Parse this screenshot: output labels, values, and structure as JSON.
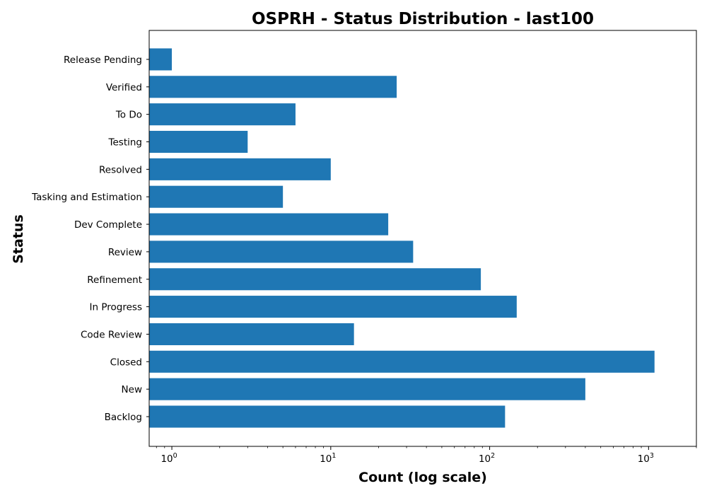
{
  "chart_data": {
    "type": "bar",
    "orientation": "horizontal",
    "title": "OSPRH - Status Distribution - last100",
    "xlabel": "Count (log scale)",
    "ylabel": "Status",
    "x_scale": "log",
    "xlim": [
      0.72,
      2000
    ],
    "x_ticks": [
      {
        "base": "10",
        "exp": "0",
        "value": 1
      },
      {
        "base": "10",
        "exp": "1",
        "value": 10
      },
      {
        "base": "10",
        "exp": "2",
        "value": 100
      },
      {
        "base": "10",
        "exp": "3",
        "value": 1000
      }
    ],
    "categories": [
      "Backlog",
      "New",
      "Closed",
      "Code Review",
      "In Progress",
      "Refinement",
      "Review",
      "Dev Complete",
      "Tasking and Estimation",
      "Resolved",
      "Testing",
      "To Do",
      "Verified",
      "Release Pending"
    ],
    "values": [
      125,
      400,
      1090,
      14,
      148,
      88,
      33,
      23,
      5,
      10,
      3,
      6,
      26,
      1
    ],
    "bar_color": "#1f77b4",
    "grid": false,
    "legend": false
  }
}
